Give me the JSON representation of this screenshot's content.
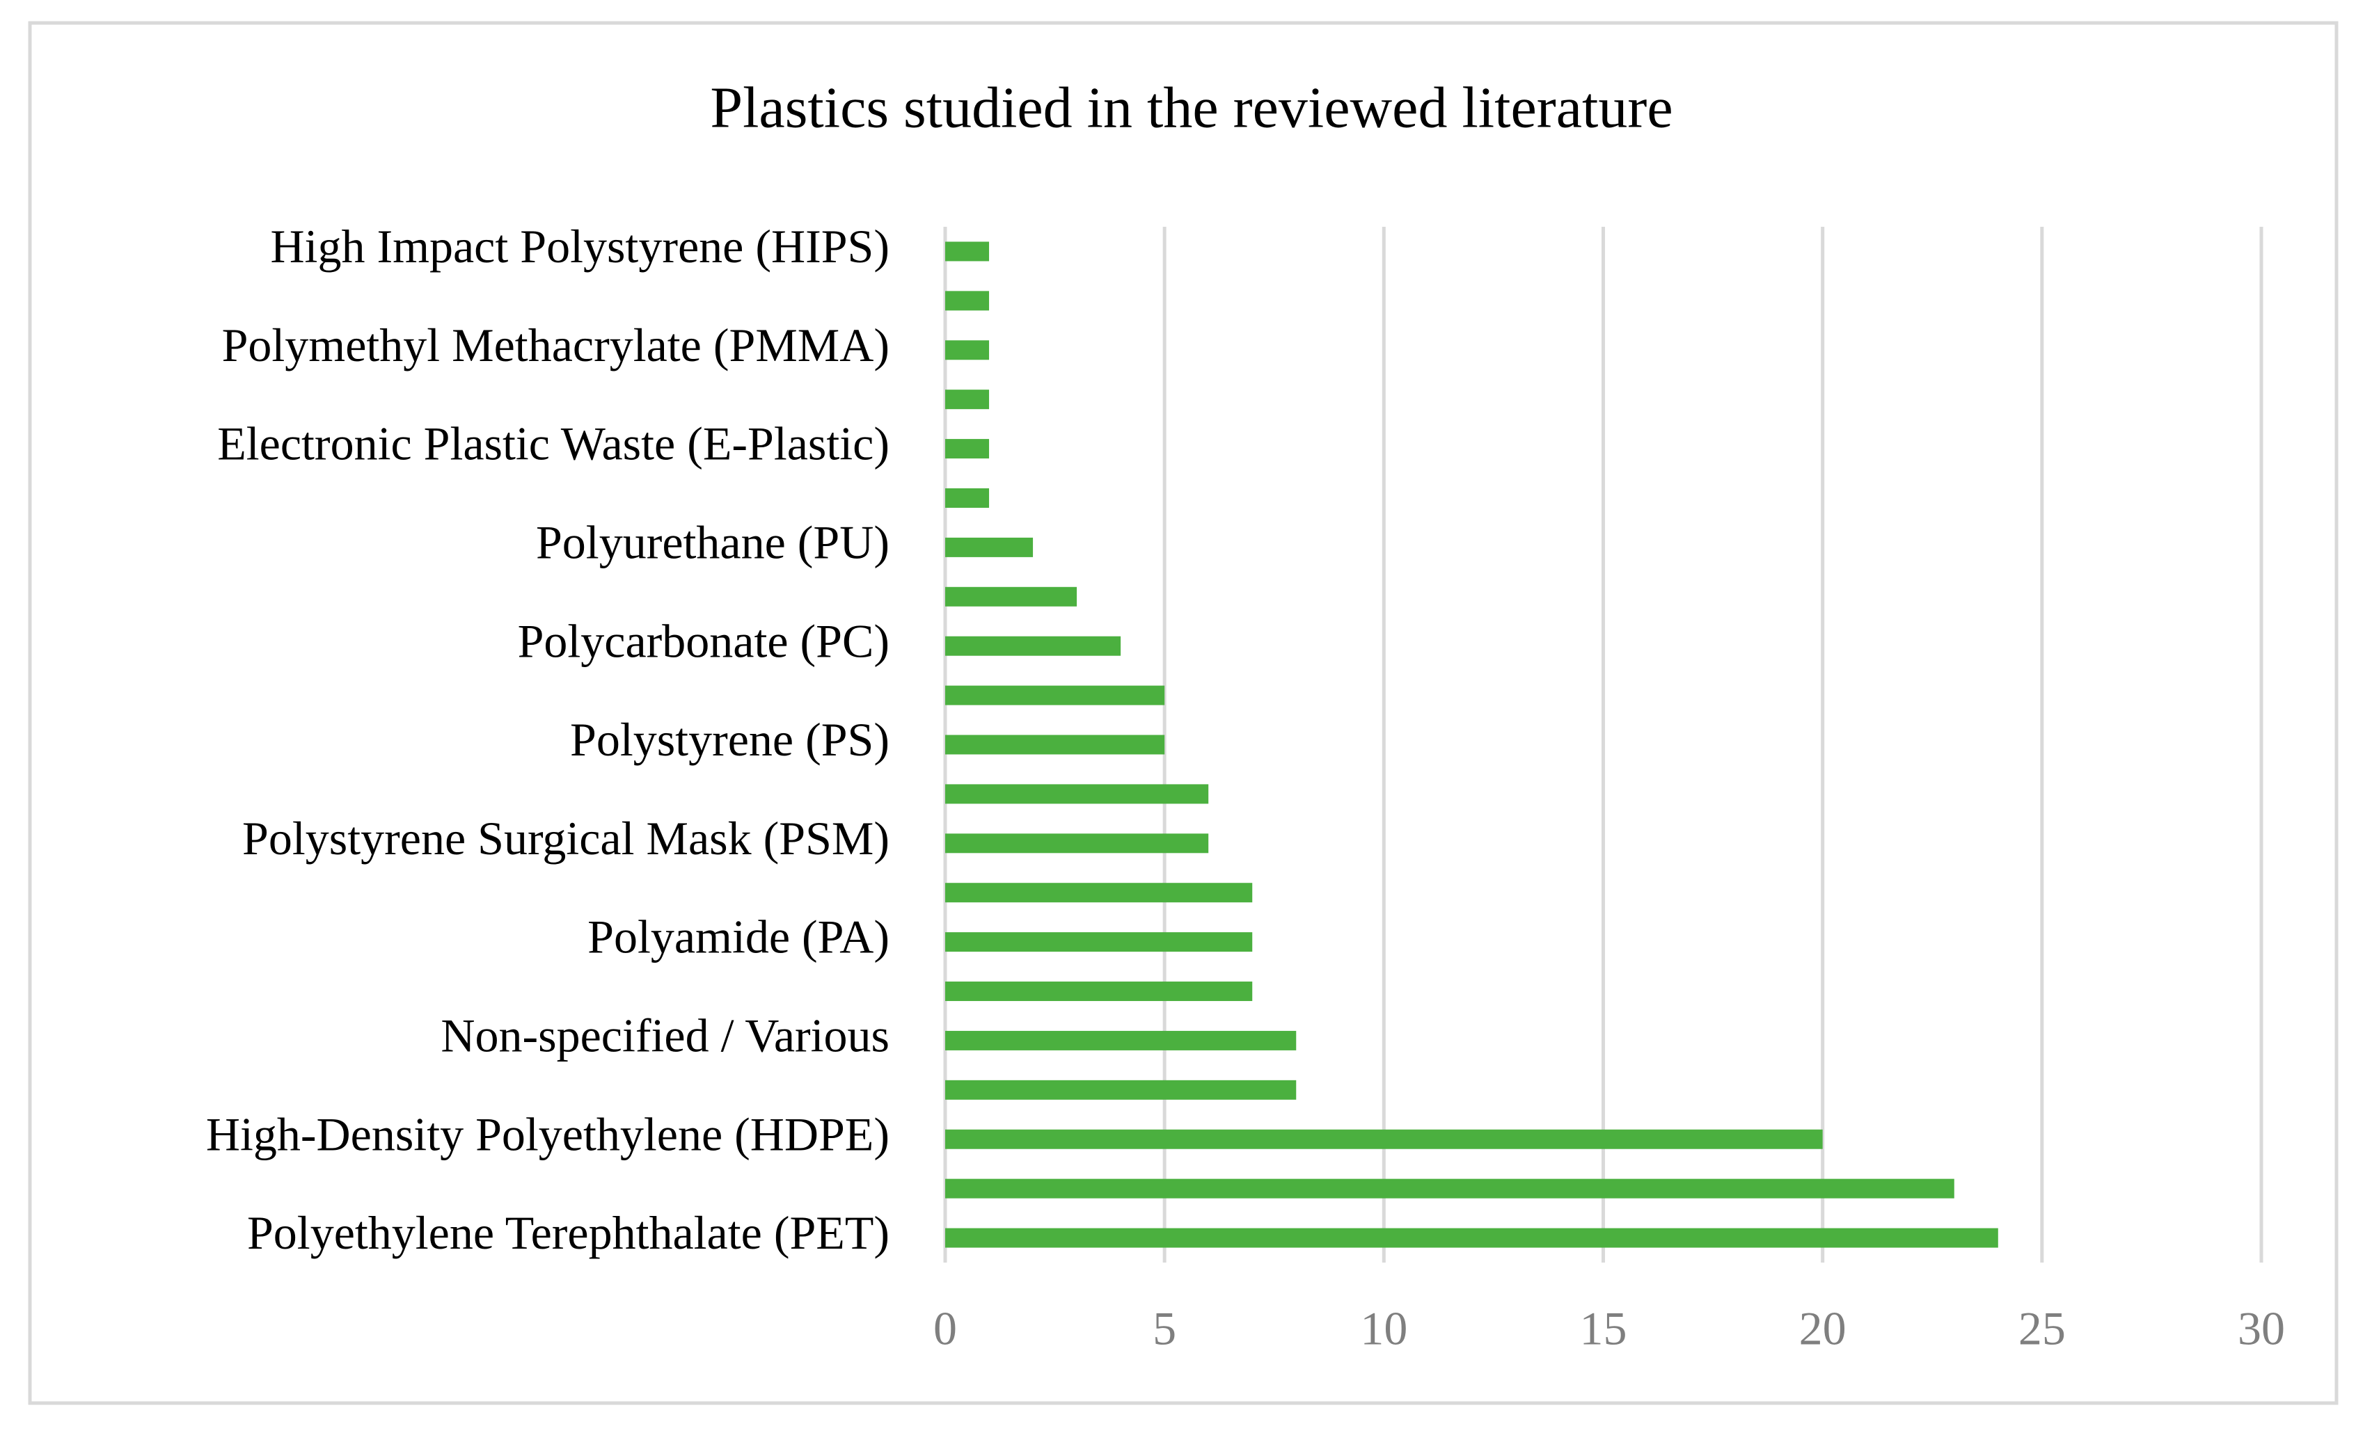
{
  "chart_data": {
    "type": "hbar",
    "title": "Plastics studied in the reviewed literature",
    "categories": [
      "Polyethylene Terephthalate (PET)",
      null,
      "High-Density Polyethylene (HDPE)",
      null,
      "Non-specified / Various",
      null,
      "Polyamide (PA)",
      null,
      "Polystyrene Surgical Mask (PSM)",
      null,
      "Polystyrene (PS)",
      null,
      "Polycarbonate (PC)",
      null,
      "Polyurethane (PU)",
      null,
      "Electronic Plastic Waste (E-Plastic)",
      null,
      "Polymethyl Methacrylate (PMMA)",
      null,
      "High Impact Polystyrene (HIPS)"
    ],
    "values": [
      24,
      23,
      20,
      8,
      8,
      7,
      7,
      7,
      6,
      6,
      5,
      5,
      4,
      3,
      2,
      1,
      1,
      1,
      1,
      1,
      1
    ],
    "color": "#4bb03f",
    "xlim": [
      0,
      30
    ],
    "xticks": [
      0,
      5,
      10,
      15,
      20,
      25,
      30
    ],
    "grid": true
  }
}
